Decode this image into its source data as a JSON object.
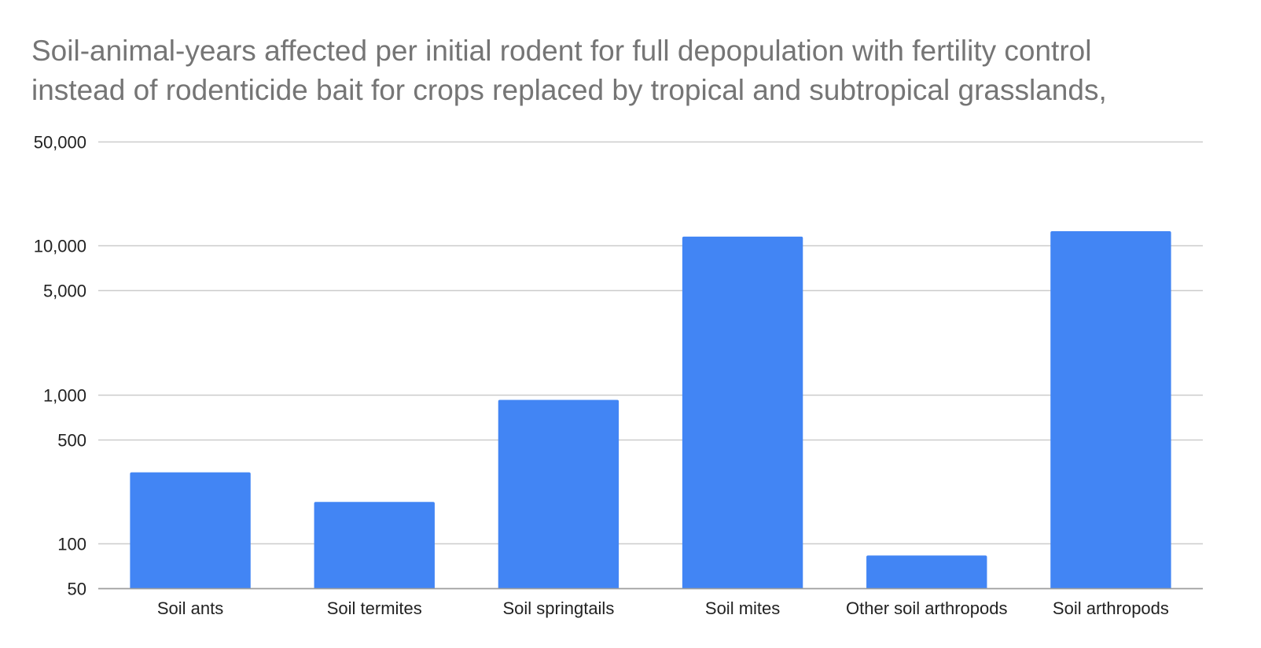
{
  "chart_data": {
    "type": "bar",
    "title_lines": [
      "Soil-animal-years affected per initial rodent for full depopulation with fertility control",
      "instead of rodenticide bait for crops replaced by tropical and subtropical grasslands,"
    ],
    "xlabel": "",
    "ylabel": "",
    "yscale": "log",
    "ylim": [
      50,
      50000
    ],
    "yticks": [
      50,
      100,
      500,
      1000,
      5000,
      10000,
      50000
    ],
    "ytick_labels": [
      "50",
      "100",
      "500",
      "1,000",
      "5,000",
      "10,000",
      "50,000"
    ],
    "categories": [
      "Soil ants",
      "Soil termites",
      "Soil springtails",
      "Soil mites",
      "Other soil arthropods",
      "Soil arthropods"
    ],
    "values": [
      300,
      190,
      920,
      11500,
      83,
      12500
    ],
    "bar_color": "#4285f4",
    "grid": true,
    "legend": "none"
  }
}
